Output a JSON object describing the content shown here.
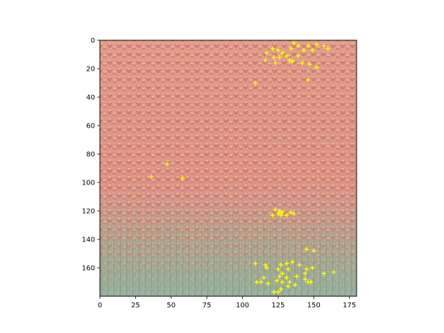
{
  "chart_data": {
    "type": "scatter",
    "background": "image of a dense tulip field (red/orange blooms with yellow edges, green stems and leaves toward the bottom)",
    "title": "",
    "xlabel": "",
    "ylabel": "",
    "xlim": [
      0,
      180
    ],
    "ylim": [
      180,
      0
    ],
    "y_inverted": true,
    "grid": false,
    "legend": null,
    "x_ticks": [
      0,
      25,
      50,
      75,
      100,
      125,
      150,
      175
    ],
    "y_ticks": [
      0,
      20,
      40,
      60,
      80,
      100,
      120,
      140,
      160
    ],
    "marker": "+",
    "marker_color": "#ffff00",
    "points": [
      [
        136,
        2
      ],
      [
        139,
        4
      ],
      [
        146,
        4
      ],
      [
        152,
        3
      ],
      [
        157,
        4
      ],
      [
        160,
        6
      ],
      [
        121,
        6
      ],
      [
        125,
        7
      ],
      [
        128,
        9
      ],
      [
        134,
        6
      ],
      [
        143,
        7
      ],
      [
        149,
        7
      ],
      [
        117,
        9
      ],
      [
        131,
        11
      ],
      [
        139,
        11
      ],
      [
        122,
        12
      ],
      [
        126,
        12
      ],
      [
        133,
        14
      ],
      [
        116,
        14
      ],
      [
        123,
        16
      ],
      [
        135,
        15
      ],
      [
        142,
        16
      ],
      [
        147,
        17
      ],
      [
        152,
        19
      ],
      [
        146,
        28
      ],
      [
        109,
        30
      ],
      [
        47,
        87
      ],
      [
        36,
        96
      ],
      [
        58,
        97
      ],
      [
        123,
        119
      ],
      [
        126,
        120
      ],
      [
        128,
        121
      ],
      [
        125,
        122
      ],
      [
        121,
        123
      ],
      [
        127,
        123
      ],
      [
        134,
        121
      ],
      [
        131,
        123
      ],
      [
        136,
        122
      ],
      [
        145,
        147
      ],
      [
        150,
        148
      ],
      [
        109,
        157
      ],
      [
        116,
        158
      ],
      [
        127,
        158
      ],
      [
        131,
        157
      ],
      [
        135,
        156
      ],
      [
        140,
        158
      ],
      [
        117,
        160
      ],
      [
        125,
        161
      ],
      [
        132,
        161
      ],
      [
        145,
        161
      ],
      [
        149,
        160
      ],
      [
        128,
        164
      ],
      [
        144,
        164
      ],
      [
        157,
        164
      ],
      [
        164,
        163
      ],
      [
        110,
        170
      ],
      [
        113,
        170
      ],
      [
        118,
        171
      ],
      [
        124,
        169
      ],
      [
        128,
        170
      ],
      [
        133,
        170
      ],
      [
        137,
        172
      ],
      [
        146,
        170
      ],
      [
        148,
        170
      ],
      [
        115,
        167
      ],
      [
        126,
        166
      ],
      [
        131,
        167
      ],
      [
        138,
        166
      ],
      [
        144,
        168
      ],
      [
        132,
        173
      ],
      [
        127,
        175
      ],
      [
        122,
        177
      ],
      [
        125,
        177
      ]
    ]
  }
}
